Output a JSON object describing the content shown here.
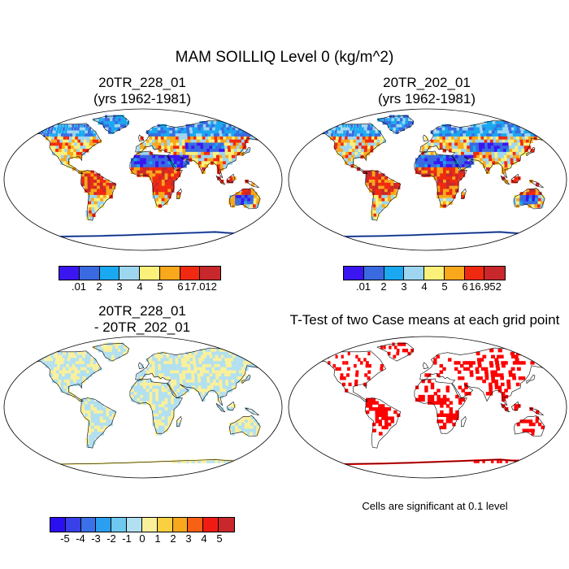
{
  "title": "MAM SOILLIQ Level 0 (kg/m^2)",
  "panels": [
    {
      "id": "case1",
      "title_line1": "20TR_228_01",
      "title_line2": "(yrs 1962-1981)"
    },
    {
      "id": "case2",
      "title_line1": "20TR_202_01",
      "title_line2": "(yrs 1962-1981)"
    },
    {
      "id": "diff",
      "title_line1": "20TR_228_01",
      "title_line2": "- 20TR_202_01"
    },
    {
      "id": "ttest",
      "title_line1": "T-Test of two Case means at each grid point"
    }
  ],
  "legends": {
    "case1": {
      "colors": [
        "#3b16f0",
        "#3a6ae0",
        "#1aa8f0",
        "#9ed6f0",
        "#fbf07a",
        "#f9a81c",
        "#f02a10",
        "#c8282c"
      ],
      "labels": [
        ".01",
        "2",
        "3",
        "4",
        "5",
        "6",
        "17.012"
      ]
    },
    "case2": {
      "colors": [
        "#3b16f0",
        "#3a6ae0",
        "#1aa8f0",
        "#9ed6f0",
        "#fbf07a",
        "#f9a81c",
        "#f02a10",
        "#c8282c"
      ],
      "labels": [
        ".01",
        "2",
        "3",
        "4",
        "5",
        "6",
        "16.952"
      ]
    },
    "diff": {
      "colors": [
        "#2a10f0",
        "#3a40e8",
        "#3a70e8",
        "#2c9ef0",
        "#6ec8f0",
        "#b2e0f0",
        "#fbf09a",
        "#fbd040",
        "#f8a81c",
        "#f86014",
        "#f01c14",
        "#c8282c"
      ],
      "labels": [
        "-5",
        "-4",
        "-3",
        "-2",
        "-1",
        "0",
        "1",
        "2",
        "3",
        "4",
        "5"
      ]
    }
  },
  "ttest_note": "Cells are significant at 0.1 level",
  "ttest_color": "#ff0000"
}
